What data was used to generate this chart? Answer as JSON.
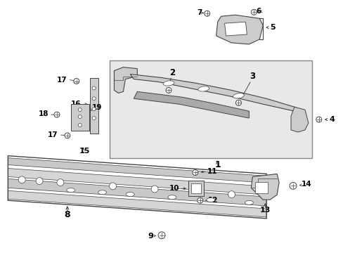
{
  "bg_color": "#ffffff",
  "fig_width": 4.89,
  "fig_height": 3.6,
  "dpi": 100,
  "line_color": "#333333",
  "dark_gray": "#444444",
  "mid_gray": "#aaaaaa",
  "light_gray": "#cccccc",
  "box_gray": "#e8e8e8"
}
